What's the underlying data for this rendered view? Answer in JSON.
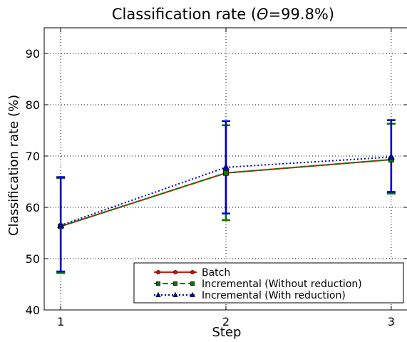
{
  "chart_data": {
    "type": "line",
    "title_prefix": "Classification rate (",
    "title_symbol": "Θ",
    "title_suffix": "=99.8%)",
    "xlabel": "Step",
    "ylabel": "Classification rate (%)",
    "x": [
      1,
      2,
      3
    ],
    "xlim": [
      0.9,
      3.1
    ],
    "ylim": [
      40,
      95
    ],
    "xticks": [
      "1",
      "2",
      "3"
    ],
    "yticks": [
      "40",
      "50",
      "60",
      "70",
      "80",
      "90"
    ],
    "grid": true,
    "legend_position": "bottom-right",
    "series": [
      {
        "name": "Batch",
        "values": [
          56.3,
          66.7,
          69.3
        ],
        "err_low": [
          47.2,
          57.5,
          62.7
        ],
        "err_high": [
          65.7,
          76.0,
          76.3
        ],
        "color": "#ff0000",
        "style": "solid",
        "marker": "circle"
      },
      {
        "name": "Incremental (Without reduction)",
        "values": [
          56.3,
          66.7,
          69.3
        ],
        "err_low": [
          47.2,
          57.5,
          62.7
        ],
        "err_high": [
          65.7,
          76.0,
          76.3
        ],
        "color": "#008000",
        "style": "dashed",
        "marker": "square"
      },
      {
        "name": "Incremental (With reduction)",
        "values": [
          56.5,
          67.8,
          69.8
        ],
        "err_low": [
          47.5,
          58.8,
          63.0
        ],
        "err_high": [
          65.9,
          76.8,
          77.0
        ],
        "color": "#0000cc",
        "style": "dotted",
        "marker": "triangle"
      }
    ]
  }
}
